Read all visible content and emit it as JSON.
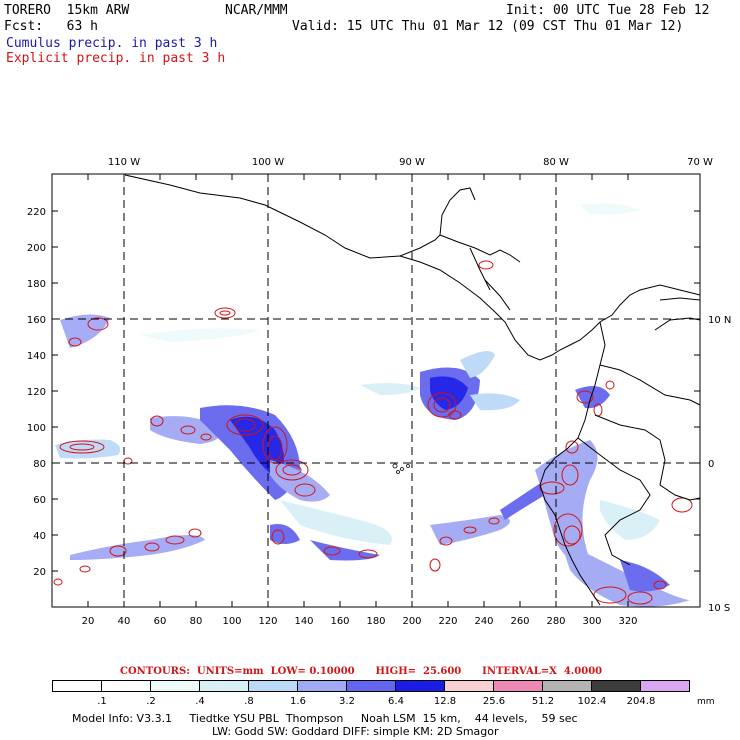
{
  "header": {
    "model": "TORERO  15km ARW",
    "center": "NCAR/MMM",
    "init": "Init: 00 UTC Tue 28 Feb 12",
    "fcst": "Fcst:   63 h",
    "valid": "Valid: 15 UTC Thu 01 Mar 12 (09 CST Thu 01 Mar 12)",
    "cumulus_label": "Cumulus precip. in past 3 h",
    "explicit_label": "Explicit precip. in past 3 h"
  },
  "map": {
    "lon_labels": [
      "110 W",
      "100 W",
      "90 W",
      "80 W",
      "70 W"
    ],
    "lat_labels": [
      "10 N",
      "0",
      "10 S"
    ],
    "x_ticks": [
      "20",
      "40",
      "60",
      "80",
      "100",
      "120",
      "140",
      "160",
      "180",
      "200",
      "220",
      "240",
      "260",
      "280",
      "300",
      "320"
    ],
    "y_ticks": [
      "20",
      "40",
      "60",
      "80",
      "100",
      "120",
      "140",
      "160",
      "180",
      "200",
      "220"
    ]
  },
  "contours_text": "CONTOURS:  UNITS=mm  LOW= 0.10000      HIGH=  25.600      INTERVAL=X  4.0000",
  "colorbar": {
    "labels": [
      ".1",
      ".2",
      ".4",
      ".8",
      "1.6",
      "3.2",
      "6.4",
      "12.8",
      "25.6",
      "51.2",
      "102.4",
      "204.8"
    ],
    "unit": "mm",
    "colors": [
      "#ffffff",
      "#ffffff",
      "#eefafa",
      "#d6f0f6",
      "#bcd9f7",
      "#a1a8f4",
      "#6466ee",
      "#1c1ce6",
      "#f7d0d4",
      "#ee88b4",
      "#b3b3b3",
      "#3c3c3c",
      "#d9a6f2"
    ]
  },
  "footer": {
    "line1": "Model Info: V3.3.1     Tiedtke YSU PBL  Thompson     Noah LSM  15 km,    44 levels,    59 sec",
    "line2": "LW: Godd SW: Goddard DIFF: simple KM: 2D Smagor"
  }
}
